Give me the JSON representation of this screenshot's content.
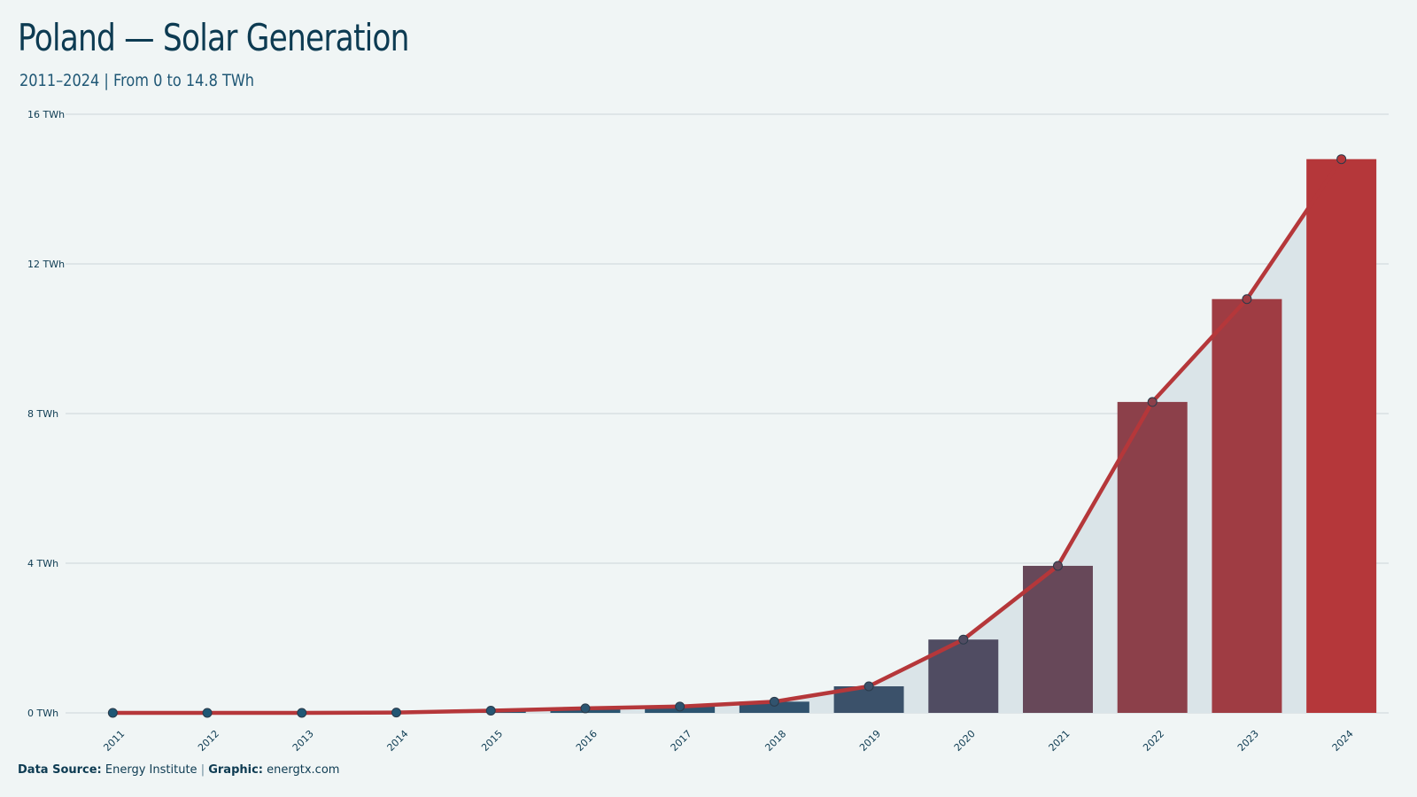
{
  "title": "Poland — Solar Generation",
  "subtitle": "2011–2024 | From 0 to 14.8 TWh",
  "footer": {
    "source_label": "Data Source:",
    "source_value": "Energy Institute",
    "separator": "|",
    "graphic_label": "Graphic:",
    "graphic_value": "energtx.com"
  },
  "colors": {
    "background": "#f0f5f5",
    "line": "#b5373a",
    "area": "#dae4e8",
    "bar_low": "#1f5775",
    "bar_high": "#b5373a",
    "grid": "#d3dcdf"
  },
  "chart_data": {
    "type": "bar",
    "categories": [
      "2011",
      "2012",
      "2013",
      "2014",
      "2015",
      "2016",
      "2017",
      "2018",
      "2019",
      "2020",
      "2021",
      "2022",
      "2023",
      "2024"
    ],
    "values": [
      0.0,
      0.0,
      0.0,
      0.01,
      0.06,
      0.12,
      0.17,
      0.3,
      0.71,
      1.96,
      3.93,
      8.31,
      11.06,
      14.8
    ],
    "overlay": {
      "type": "line",
      "values": [
        0.0,
        0.0,
        0.0,
        0.01,
        0.06,
        0.12,
        0.17,
        0.3,
        0.71,
        1.96,
        3.93,
        8.31,
        11.06,
        14.8
      ]
    },
    "ylim": [
      0,
      16
    ],
    "yticks": [
      0,
      4,
      8,
      12,
      16
    ],
    "ytick_labels": [
      "0 TWh",
      "4 TWh",
      "8 TWh",
      "12 TWh",
      "16 TWh"
    ],
    "grid": true,
    "legend": "none"
  }
}
